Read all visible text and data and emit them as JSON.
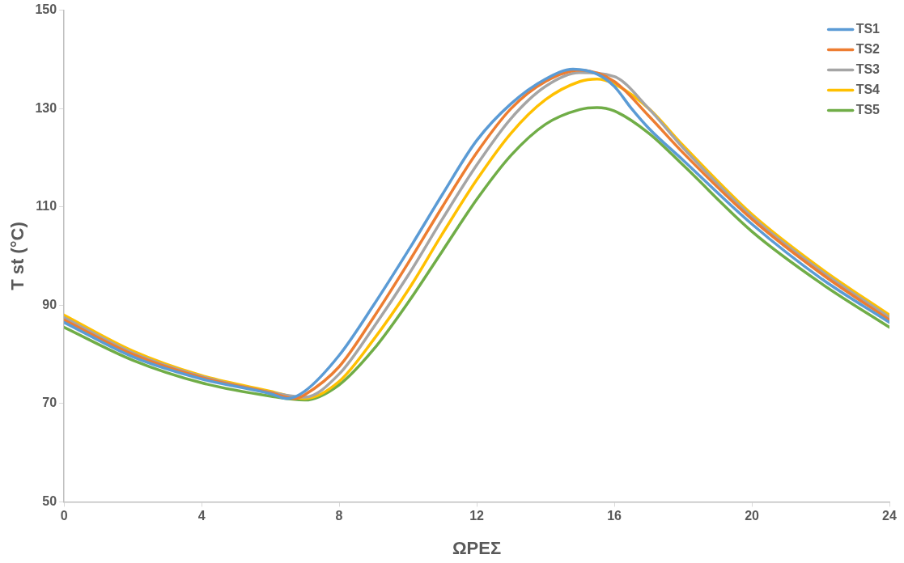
{
  "chart_data": {
    "type": "line",
    "xlabel": "ΩΡΕΣ",
    "ylabel": "T st (°C)",
    "xlim": [
      0,
      24
    ],
    "xticks": [
      0,
      4,
      8,
      12,
      16,
      20,
      24
    ],
    "ylim": [
      50,
      150
    ],
    "yticks": [
      50,
      70,
      90,
      110,
      130,
      150
    ],
    "grid": false,
    "legend": "top right",
    "marker": "none",
    "line_style": "solid",
    "series": [
      {
        "name": "TS1",
        "color": "#5b9bd5",
        "x": [
          0,
          2,
          4,
          6,
          6.5,
          7,
          8,
          9,
          10,
          11,
          12,
          13,
          14,
          14.8,
          15.5,
          16,
          16.5,
          17,
          18,
          20,
          22,
          24
        ],
        "values": [
          86.5,
          79.5,
          75,
          72,
          71,
          72.5,
          79.8,
          90,
          101,
          112.5,
          123.5,
          131,
          136,
          138,
          137,
          134.5,
          130,
          126,
          119.5,
          106.5,
          95.5,
          86.5
        ]
      },
      {
        "name": "TS2",
        "color": "#ed7d31",
        "x": [
          0,
          2,
          4,
          6,
          6.7,
          7,
          8,
          9,
          10,
          11,
          12,
          13,
          14,
          15,
          16,
          17,
          18,
          20,
          22,
          24
        ],
        "values": [
          87,
          80,
          75.3,
          72.2,
          71,
          71.8,
          77.5,
          87.5,
          98.5,
          110,
          121,
          130,
          135.5,
          137.8,
          135.5,
          128.5,
          121,
          107.5,
          96.5,
          87
        ]
      },
      {
        "name": "TS3",
        "color": "#a5a5a5",
        "x": [
          0,
          2,
          4,
          6,
          7,
          8,
          9,
          10,
          11,
          12,
          13,
          14,
          15,
          16,
          17,
          18,
          20,
          22,
          24
        ],
        "values": [
          87.5,
          80.3,
          75.5,
          72.3,
          71.3,
          76,
          85.5,
          96,
          107.5,
          118.5,
          128,
          134.5,
          137.3,
          136.5,
          130,
          122,
          108,
          97,
          87.5
        ]
      },
      {
        "name": "TS4",
        "color": "#ffc000",
        "x": [
          0,
          2,
          4,
          6,
          7,
          8,
          9,
          10,
          11,
          12,
          13,
          14,
          15,
          15.5,
          16,
          17,
          18,
          20,
          22,
          24
        ],
        "values": [
          88,
          80.7,
          75.7,
          72.5,
          71,
          74.5,
          83,
          93,
          104.5,
          115.5,
          125,
          131.8,
          135.5,
          136,
          135,
          130,
          122.5,
          108.5,
          97.5,
          88
        ]
      },
      {
        "name": "TS5",
        "color": "#70ad47",
        "x": [
          0,
          2,
          4,
          6,
          7,
          8,
          9,
          10,
          11,
          12,
          13,
          14,
          15,
          15.5,
          16,
          17,
          18,
          20,
          22,
          24
        ],
        "values": [
          85.5,
          78.8,
          74.2,
          71.5,
          70.7,
          73.8,
          81,
          90.5,
          101,
          111.5,
          120.5,
          126.8,
          129.8,
          130.2,
          129.5,
          125,
          118.5,
          105,
          94.5,
          85.5
        ]
      }
    ]
  }
}
